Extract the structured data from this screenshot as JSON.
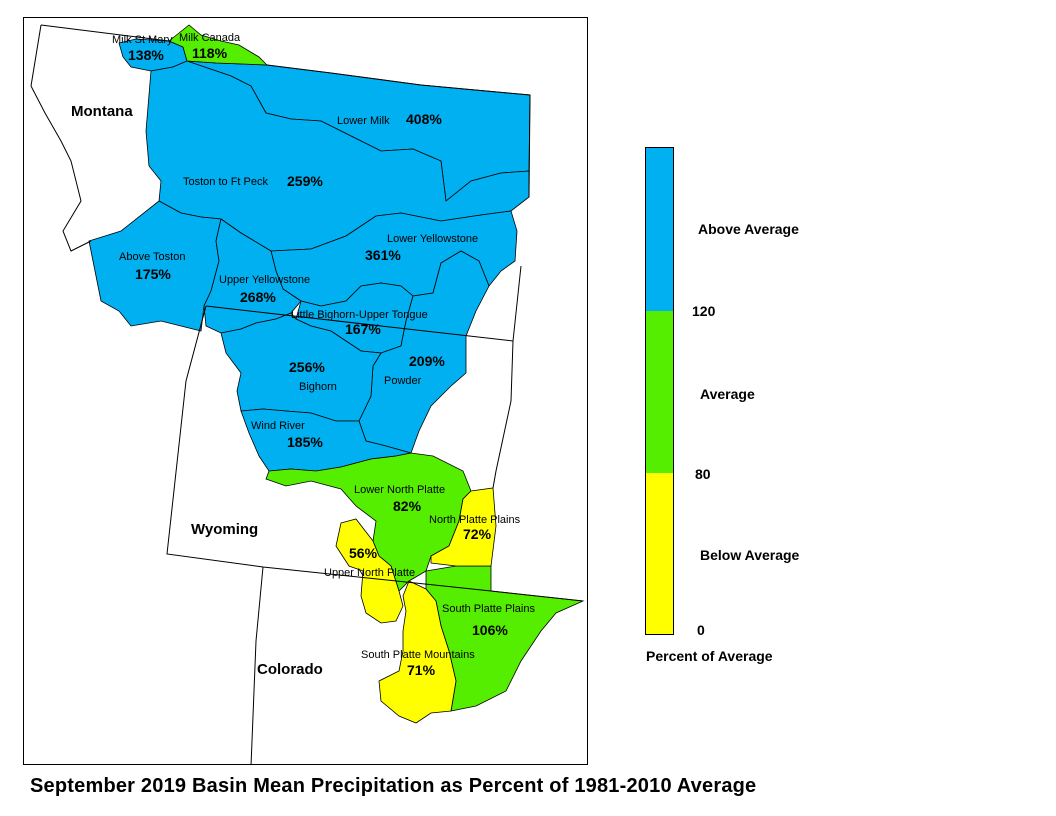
{
  "title": "September 2019 Basin Mean Precipitation as Percent of 1981-2010 Average",
  "colors": {
    "above": "#00b0f0",
    "average": "#55ee00",
    "below": "#ffff00"
  },
  "states": {
    "montana": "Montana",
    "wyoming": "Wyoming",
    "colorado": "Colorado"
  },
  "basins": {
    "milk_st_mary": {
      "name": "Milk St Mary",
      "pct": "138%",
      "category": "above"
    },
    "milk_canada": {
      "name": "Milk Canada",
      "pct": "118%",
      "category": "average"
    },
    "lower_milk": {
      "name": "Lower Milk",
      "pct": "408%",
      "category": "above"
    },
    "toston_to_ft_peck": {
      "name": "Toston to Ft Peck",
      "pct": "259%",
      "category": "above"
    },
    "above_toston": {
      "name": "Above Toston",
      "pct": "175%",
      "category": "above"
    },
    "lower_yellowstone": {
      "name": "Lower Yellowstone",
      "pct": "361%",
      "category": "above"
    },
    "upper_yellowstone": {
      "name": "Upper Yellowstone",
      "pct": "268%",
      "category": "above"
    },
    "little_bighorn_upper_tongue": {
      "name": "Little Bighorn-Upper Tongue",
      "pct": "167%",
      "category": "above"
    },
    "bighorn": {
      "name": "Bighorn",
      "pct": "256%",
      "category": "above"
    },
    "powder": {
      "name": "Powder",
      "pct": "209%",
      "category": "above"
    },
    "wind_river": {
      "name": "Wind River",
      "pct": "185%",
      "category": "above"
    },
    "lower_north_platte": {
      "name": "Lower North Platte",
      "pct": "82%",
      "category": "average"
    },
    "north_platte_plains": {
      "name": "North Platte Plains",
      "pct": "72%",
      "category": "below"
    },
    "upper_north_platte": {
      "name": "Upper North Platte",
      "pct": "56%",
      "category": "below"
    },
    "south_platte_plains": {
      "name": "South Platte Plains",
      "pct": "106%",
      "category": "average"
    },
    "south_platte_mountains": {
      "name": "South Platte Mountains",
      "pct": "71%",
      "category": "below"
    }
  },
  "legend": {
    "title": "Percent of Average",
    "categories": [
      {
        "label": "Above Average",
        "color": "#00b0f0",
        "range": [
          120,
          null
        ]
      },
      {
        "label": "Average",
        "color": "#55ee00",
        "range": [
          80,
          120
        ]
      },
      {
        "label": "Below Average",
        "color": "#ffff00",
        "range": [
          0,
          80
        ]
      }
    ],
    "breaks": [
      "120",
      "80",
      "0"
    ]
  }
}
